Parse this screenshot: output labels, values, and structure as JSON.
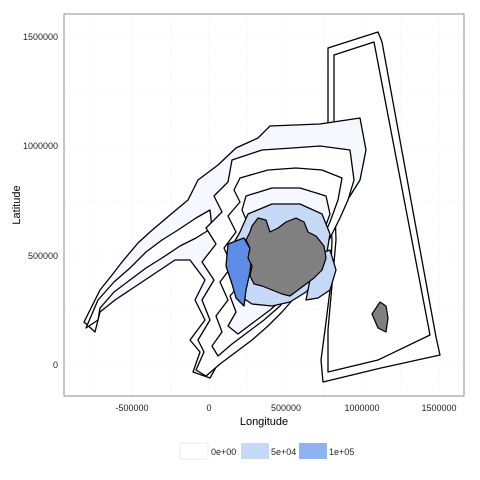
{
  "map": {
    "xlabel": "Longitude",
    "ylabel": "Latitude",
    "x_ticks": [
      "-500000",
      "0",
      "500000",
      "1000000",
      "1500000"
    ],
    "y_ticks": [
      "0",
      "500000",
      "1000000",
      "1500000"
    ],
    "colors": {
      "panel_border": "#8c8c8c",
      "grid": "#ebebeb",
      "land": "#808080",
      "fill_low": "#f5f9ff",
      "fill_mid": "#c6d9f7",
      "fill_high": "#8fb3f2",
      "fill_max": "#5e8de8"
    }
  },
  "legend": {
    "items": [
      {
        "label": "0e+00",
        "color": "#ffffff"
      },
      {
        "label": "5e+04",
        "color": "#c6d9f7"
      },
      {
        "label": "1e+05",
        "color": "#8fb3f2"
      }
    ]
  }
}
